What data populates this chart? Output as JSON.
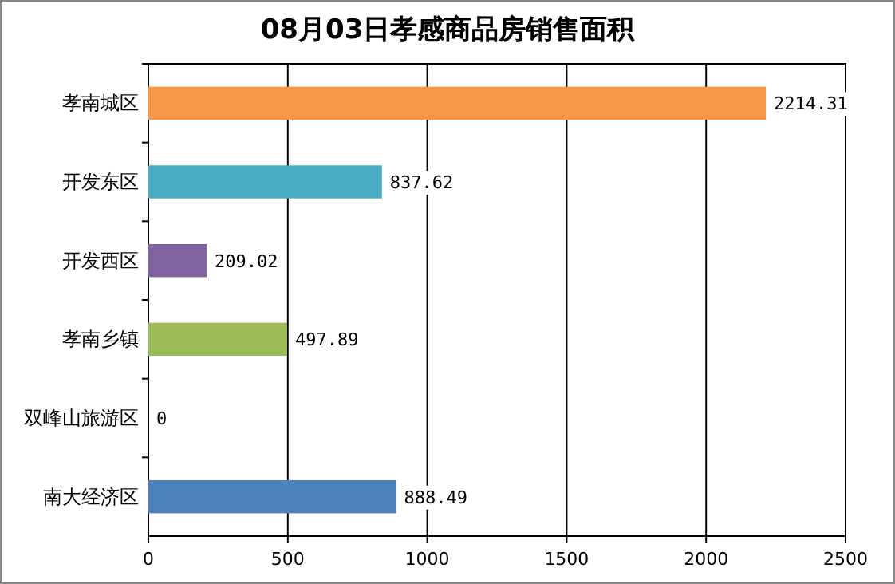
{
  "chart_data": {
    "type": "bar",
    "orientation": "horizontal",
    "title": "08月03日孝感商品房销售面积",
    "categories": [
      "孝南城区",
      "开发东区",
      "开发西区",
      "孝南乡镇",
      "双峰山旅游区",
      "南大经济区"
    ],
    "values": [
      2214.31,
      837.62,
      209.02,
      497.89,
      0,
      888.49
    ],
    "colors": [
      "#f79646",
      "#4bacc6",
      "#8064a2",
      "#9bbb59",
      "#c0504d",
      "#4f81bd"
    ],
    "xlim": [
      0,
      2500
    ],
    "xticks": [
      0,
      500,
      1000,
      1500,
      2000,
      2500
    ],
    "grid": "x",
    "data_labels": true
  }
}
